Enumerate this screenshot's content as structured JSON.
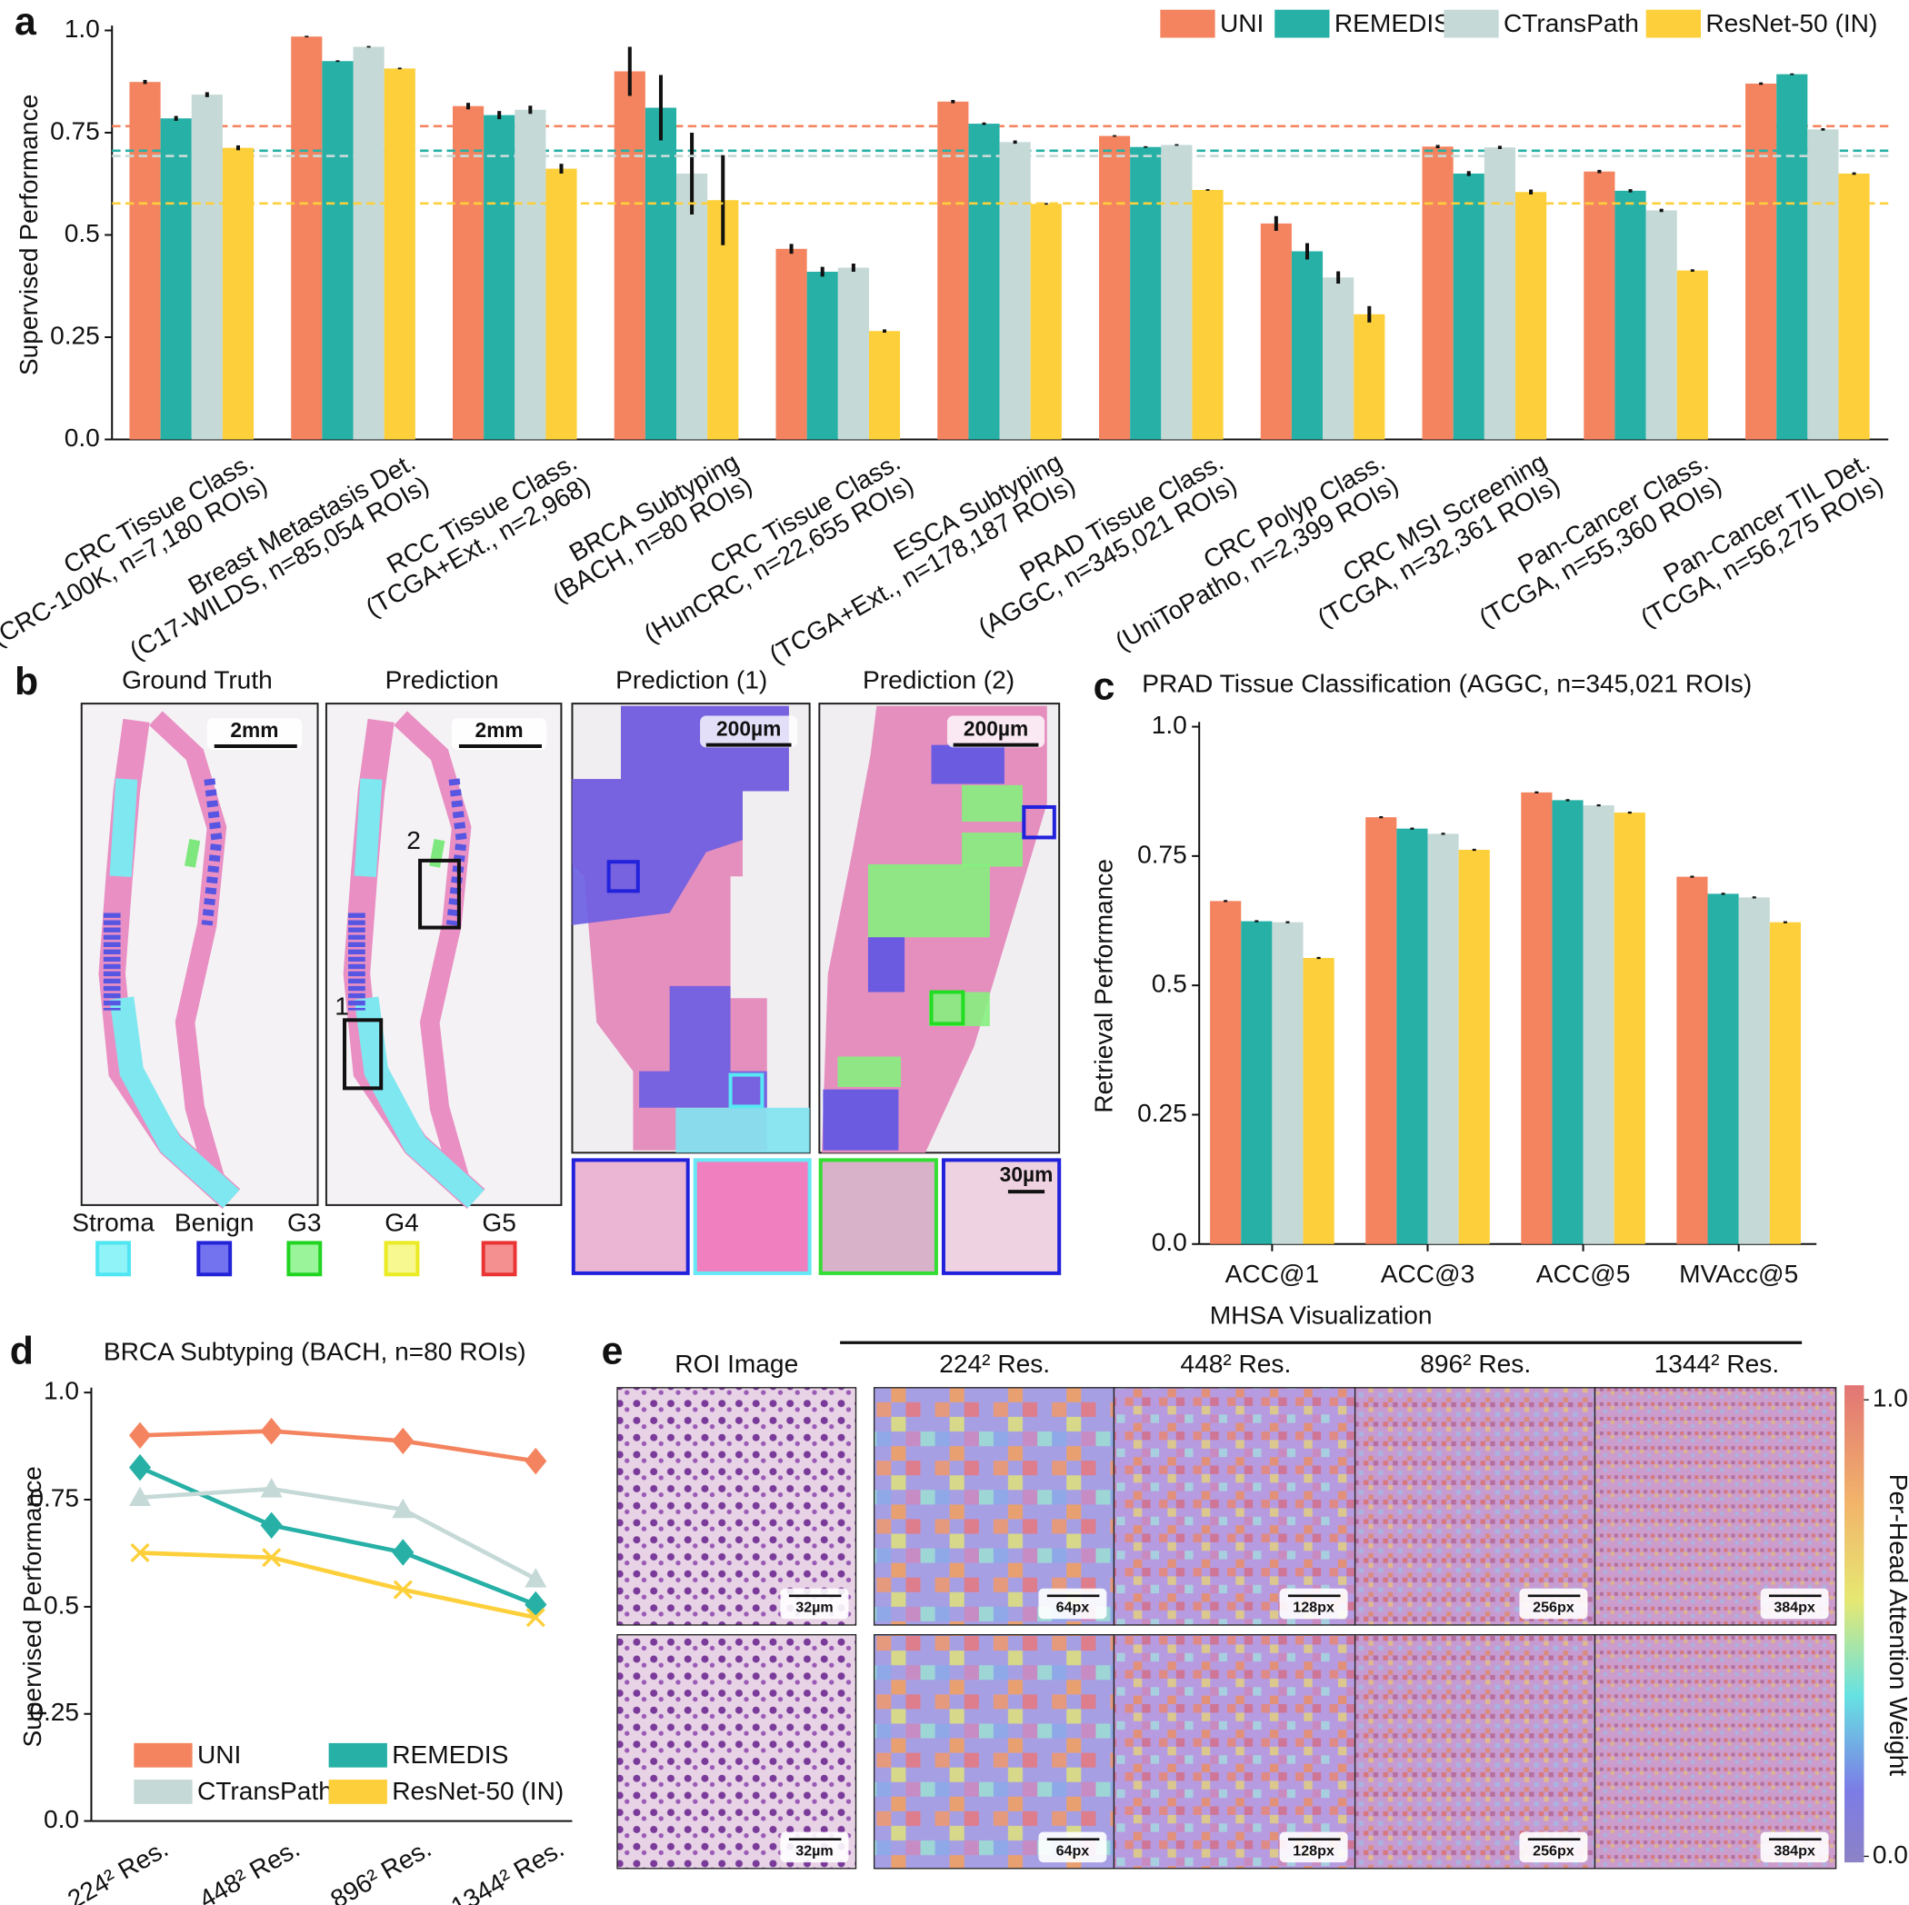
{
  "panel_labels": [
    "a",
    "b",
    "c",
    "d",
    "e"
  ],
  "chart_data": [
    {
      "type": "bar",
      "ylabel": "Supervised Performance",
      "categories": [
        [
          "CRC Tissue Class.",
          "(CRC-100K, n=7,180 ROIs)"
        ],
        [
          "Breast Metastasis Det.",
          "(C17-WILDS, n=85,054 ROIs)"
        ],
        [
          "RCC Tissue Class.",
          "(TCGA+Ext., n=2,968)"
        ],
        [
          "BRCA Subtyping",
          "(BACH, n=80 ROIs)"
        ],
        [
          "CRC Tissue Class.",
          "(HunCRC, n=22,655 ROIs)"
        ],
        [
          "ESCA Subtyping",
          "(TCGA+Ext., n=178,187 ROIs)"
        ],
        [
          "PRAD Tissue Class.",
          "(AGGC, n=345,021 ROIs)"
        ],
        [
          "CRC Polyp Class.",
          "(UniToPatho, n=2,399 ROIs)"
        ],
        [
          "CRC MSI Screening",
          "(TCGA, n=32,361 ROIs)"
        ],
        [
          "Pan-Cancer Class.",
          "(TCGA, n=55,360 ROIs)"
        ],
        [
          "Pan-Cancer TIL Det.",
          "(TCGA, n=56,275 ROIs)"
        ]
      ],
      "series": [
        {
          "name": "UNI",
          "color": "#f4845f",
          "values": [
            0.874,
            0.985,
            0.815,
            0.9,
            0.466,
            0.826,
            0.742,
            0.528,
            0.716,
            0.655,
            0.87
          ],
          "errors": [
            0.005,
            0.002,
            0.008,
            0.06,
            0.012,
            0.004,
            0.002,
            0.018,
            0.004,
            0.004,
            0.003
          ],
          "mean": 0.766
        },
        {
          "name": "REMEDIS",
          "color": "#26b0a6",
          "values": [
            0.785,
            0.925,
            0.793,
            0.811,
            0.41,
            0.772,
            0.715,
            0.46,
            0.65,
            0.608,
            0.893
          ],
          "errors": [
            0.006,
            0.002,
            0.01,
            0.08,
            0.012,
            0.003,
            0.002,
            0.02,
            0.006,
            0.004,
            0.002
          ],
          "mean": 0.706
        },
        {
          "name": "CTransPath",
          "color": "#c5d9d7",
          "values": [
            0.843,
            0.96,
            0.806,
            0.65,
            0.42,
            0.727,
            0.72,
            0.396,
            0.714,
            0.56,
            0.758
          ],
          "errors": [
            0.006,
            0.002,
            0.01,
            0.1,
            0.01,
            0.004,
            0.002,
            0.015,
            0.004,
            0.004,
            0.003
          ],
          "mean": 0.693
        },
        {
          "name": "ResNet-50 (IN)",
          "color": "#fdd03b",
          "values": [
            0.713,
            0.907,
            0.662,
            0.585,
            0.265,
            0.576,
            0.61,
            0.306,
            0.605,
            0.413,
            0.65
          ],
          "errors": [
            0.006,
            0.002,
            0.012,
            0.11,
            0.004,
            0.002,
            0.002,
            0.02,
            0.006,
            0.003,
            0.003
          ],
          "mean": 0.577
        }
      ],
      "ylim": [
        0,
        1
      ],
      "yticks": [
        {
          "value": 0,
          "label": "0.0"
        },
        0.25,
        0.5,
        0.75,
        {
          "value": 1,
          "label": "1.0"
        }
      ],
      "legend": "upper right",
      "grid": false
    },
    {
      "type": "bar",
      "title": "PRAD Tissue Classification (AGGC, n=345,021 ROIs)",
      "ylabel": "Retrieval Performance",
      "categories": [
        "ACC@1",
        "ACC@3",
        "ACC@5",
        "MVAcc@5"
      ],
      "series": [
        {
          "name": "UNI",
          "color": "#f4845f",
          "values": [
            0.663,
            0.825,
            0.873,
            0.71
          ],
          "errors": [
            0.002,
            0.002,
            0.002,
            0.002
          ]
        },
        {
          "name": "REMEDIS",
          "color": "#26b0a6",
          "values": [
            0.624,
            0.803,
            0.858,
            0.677
          ],
          "errors": [
            0.002,
            0.002,
            0.002,
            0.002
          ]
        },
        {
          "name": "CTransPath",
          "color": "#c5d9d7",
          "values": [
            0.622,
            0.793,
            0.848,
            0.67
          ],
          "errors": [
            0.002,
            0.002,
            0.002,
            0.002
          ]
        },
        {
          "name": "ResNet-50 (IN)",
          "color": "#fdd03b",
          "values": [
            0.553,
            0.762,
            0.834,
            0.622
          ],
          "errors": [
            0.002,
            0.002,
            0.002,
            0.002
          ]
        }
      ],
      "ylim": [
        0,
        1
      ],
      "yticks": [
        {
          "value": 0,
          "label": "0.0"
        },
        0.25,
        0.5,
        0.75,
        {
          "value": 1,
          "label": "1.0"
        }
      ],
      "grid": false
    },
    {
      "type": "line",
      "title": "BRCA Subtyping (BACH, n=80 ROIs)",
      "ylabel": "Supervised Performance",
      "categories": [
        "224² Res.",
        "448² Res.",
        "896² Res.",
        "1344² Res."
      ],
      "series": [
        {
          "name": "UNI",
          "color": "#f4845f",
          "marker": "diamond",
          "values": [
            0.9,
            0.91,
            0.887,
            0.84
          ]
        },
        {
          "name": "REMEDIS",
          "color": "#26b0a6",
          "marker": "diamond",
          "values": [
            0.825,
            0.69,
            0.627,
            0.505
          ]
        },
        {
          "name": "CTransPath",
          "color": "#c5d9d7",
          "marker": "triangle",
          "values": [
            0.755,
            0.775,
            0.727,
            0.565
          ]
        },
        {
          "name": "ResNet-50 (IN)",
          "color": "#fdd03b",
          "marker": "x",
          "values": [
            0.626,
            0.615,
            0.54,
            0.475
          ]
        }
      ],
      "ylim": [
        0,
        1
      ],
      "yticks": [
        {
          "value": 0,
          "label": "0.0"
        },
        0.25,
        0.5,
        0.75,
        {
          "value": 1,
          "label": "1.0"
        }
      ],
      "legend": "lower left",
      "grid": false
    }
  ],
  "panel_b": {
    "titles": [
      "Ground Truth",
      "Prediction",
      "Prediction (1)",
      "Prediction (2)"
    ],
    "scale_bars": [
      "2mm",
      "2mm",
      "200µm",
      "200µm",
      "30µm"
    ],
    "box_labels": [
      "1",
      "2"
    ],
    "legend": [
      {
        "name": "Stroma",
        "color": "#8ff3f8",
        "edge": "#4fe6f2"
      },
      {
        "name": "Benign",
        "color": "#7373f0",
        "edge": "#2323d8"
      },
      {
        "name": "G3",
        "color": "#9af59a",
        "edge": "#22d422"
      },
      {
        "name": "G4",
        "color": "#f8f890",
        "edge": "#eaea25"
      },
      {
        "name": "G5",
        "color": "#f59090",
        "edge": "#ea3434"
      }
    ]
  },
  "panel_e": {
    "title": "MHSA Visualization",
    "column_titles": [
      "ROI Image",
      "224² Res.",
      "448² Res.",
      "896² Res.",
      "1344² Res."
    ],
    "scale_bars": [
      [
        "32µm",
        "64px",
        "128px",
        "256px",
        "384px"
      ],
      [
        "32µm",
        "64px",
        "128px",
        "256px",
        "384px"
      ]
    ],
    "colorbar": {
      "label": "Per-Head Attention Weight",
      "ticks": [
        {
          "value": 0,
          "label": "0.0"
        },
        {
          "value": 1,
          "label": "1.0"
        }
      ]
    }
  }
}
